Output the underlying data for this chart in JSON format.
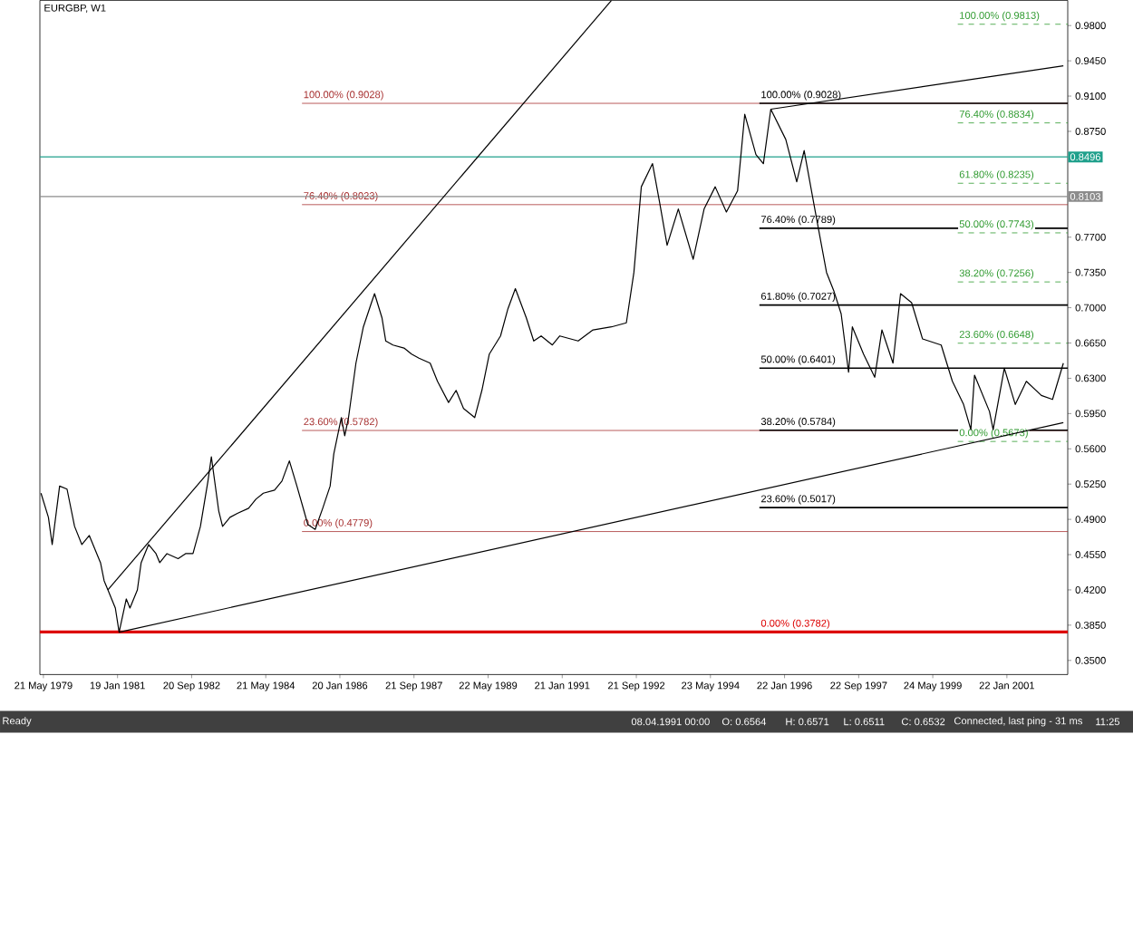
{
  "chart_data": {
    "type": "line",
    "title": "EURGBP, W1",
    "xlim": [
      "1979-04-22",
      "2002-06-06"
    ],
    "ylim": [
      0.336,
      1.005
    ],
    "xticks": [
      {
        "value": "1979-05-21",
        "label": "21 May 1979"
      },
      {
        "value": "1981-01-19",
        "label": "19 Jan 1981"
      },
      {
        "value": "1982-09-20",
        "label": "20 Sep 1982"
      },
      {
        "value": "1984-05-21",
        "label": "21 May 1984"
      },
      {
        "value": "1986-01-20",
        "label": "20 Jan 1986"
      },
      {
        "value": "1987-09-21",
        "label": "21 Sep 1987"
      },
      {
        "value": "1989-05-22",
        "label": "22 May 1989"
      },
      {
        "value": "1991-01-21",
        "label": "21 Jan 1991"
      },
      {
        "value": "1992-09-21",
        "label": "21 Sep 1992"
      },
      {
        "value": "1994-05-23",
        "label": "23 May 1994"
      },
      {
        "value": "1996-01-22",
        "label": "22 Jan 1996"
      },
      {
        "value": "1997-09-22",
        "label": "22 Sep 1997"
      },
      {
        "value": "1999-05-24",
        "label": "24 May 1999"
      },
      {
        "value": "2001-01-22",
        "label": "22 Jan 2001"
      }
    ],
    "yticks": [
      {
        "value": 0.98,
        "label": "0.9800"
      },
      {
        "value": 0.945,
        "label": "0.9450"
      },
      {
        "value": 0.91,
        "label": "0.9100"
      },
      {
        "value": 0.875,
        "label": "0.8750"
      },
      {
        "value": 0.77,
        "label": "0.7700"
      },
      {
        "value": 0.735,
        "label": "0.7350"
      },
      {
        "value": 0.7,
        "label": "0.7000"
      },
      {
        "value": 0.665,
        "label": "0.6650"
      },
      {
        "value": 0.63,
        "label": "0.6300"
      },
      {
        "value": 0.595,
        "label": "0.5950"
      },
      {
        "value": 0.56,
        "label": "0.5600"
      },
      {
        "value": 0.525,
        "label": "0.5250"
      },
      {
        "value": 0.49,
        "label": "0.4900"
      },
      {
        "value": 0.455,
        "label": "0.4550"
      },
      {
        "value": 0.42,
        "label": "0.4200"
      },
      {
        "value": 0.385,
        "label": "0.3850"
      },
      {
        "value": 0.35,
        "label": "0.3500"
      }
    ],
    "series": [
      {
        "color": "#000000",
        "x": [
          "1979-05",
          "1979-07",
          "1979-08",
          "1979-10",
          "1979-12",
          "1980-02",
          "1980-04",
          "1980-06",
          "1980-09",
          "1980-10",
          "1980-11",
          "1981-01",
          "1981-02",
          "1981-04",
          "1981-05",
          "1981-07",
          "1981-08",
          "1981-10",
          "1981-12",
          "1982-01",
          "1982-03",
          "1982-06",
          "1982-08",
          "1982-10",
          "1982-12",
          "1983-02",
          "1983-03",
          "1983-05",
          "1983-06",
          "1983-08",
          "1983-10",
          "1984-01",
          "1984-03",
          "1984-05",
          "1984-08",
          "1984-10",
          "1984-12",
          "1985-02",
          "1985-04",
          "1985-05",
          "1985-07",
          "1985-09",
          "1985-11",
          "1985-12",
          "1986-02",
          "1986-03",
          "1986-04",
          "1986-06",
          "1986-08",
          "1986-10",
          "1986-11",
          "1987-01",
          "1987-02",
          "1987-04",
          "1987-07",
          "1987-09",
          "1987-11",
          "1988-02",
          "1988-04",
          "1988-07",
          "1988-09",
          "1988-11",
          "1989-02",
          "1989-04",
          "1989-06",
          "1989-09",
          "1989-11",
          "1990-01",
          "1990-04",
          "1990-06",
          "1990-08",
          "1990-11",
          "1991-01",
          "1991-06",
          "1991-10",
          "1992-03",
          "1992-07",
          "1992-09",
          "1992-11",
          "1993-02",
          "1993-04",
          "1993-06",
          "1993-09",
          "1994-01",
          "1994-04",
          "1994-07",
          "1994-10",
          "1995-01",
          "1995-03",
          "1995-06",
          "1995-08",
          "1995-10",
          "1996-02",
          "1996-05",
          "1996-07",
          "1996-10",
          "1997-01",
          "1997-03",
          "1997-05",
          "1997-07",
          "1997-08",
          "1997-11",
          "1998-02",
          "1998-04",
          "1998-07",
          "1998-09",
          "1998-12",
          "1999-03",
          "1999-08",
          "1999-11",
          "2000-02",
          "2000-04",
          "2000-05",
          "2000-09",
          "2000-10",
          "2001-01",
          "2001-04",
          "2001-07",
          "2001-11",
          "2002-02",
          "2002-05"
        ],
        "values": [
          0.516,
          0.492,
          0.465,
          0.523,
          0.52,
          0.483,
          0.465,
          0.474,
          0.447,
          0.429,
          0.42,
          0.402,
          0.378,
          0.411,
          0.402,
          0.42,
          0.447,
          0.465,
          0.456,
          0.447,
          0.456,
          0.451,
          0.456,
          0.456,
          0.483,
          0.528,
          0.552,
          0.498,
          0.483,
          0.492,
          0.496,
          0.501,
          0.51,
          0.516,
          0.519,
          0.528,
          0.548,
          0.523,
          0.498,
          0.485,
          0.48,
          0.501,
          0.523,
          0.555,
          0.591,
          0.573,
          0.591,
          0.645,
          0.681,
          0.703,
          0.714,
          0.69,
          0.667,
          0.663,
          0.66,
          0.654,
          0.65,
          0.645,
          0.627,
          0.606,
          0.618,
          0.6,
          0.591,
          0.618,
          0.654,
          0.672,
          0.699,
          0.719,
          0.69,
          0.667,
          0.672,
          0.663,
          0.672,
          0.667,
          0.678,
          0.681,
          0.685,
          0.735,
          0.82,
          0.843,
          0.804,
          0.762,
          0.798,
          0.748,
          0.798,
          0.82,
          0.795,
          0.816,
          0.892,
          0.852,
          0.843,
          0.897,
          0.867,
          0.825,
          0.856,
          0.795,
          0.735,
          0.717,
          0.694,
          0.636,
          0.681,
          0.654,
          0.631,
          0.678,
          0.645,
          0.714,
          0.705,
          0.669,
          0.663,
          0.627,
          0.604,
          0.579,
          0.633,
          0.597,
          0.579,
          0.64,
          0.604,
          0.627,
          0.613,
          0.609,
          0.645
        ]
      },
      {
        "color": "#000000",
        "x": [
          "1980-11",
          "1992-03"
        ],
        "values": [
          0.42,
          1.005
        ]
      },
      {
        "color": "#000000",
        "x": [
          "1981-02",
          "2002-05"
        ],
        "values": [
          0.378,
          0.586
        ]
      },
      {
        "color": "#000000",
        "x": [
          "1995-10",
          "2002-05"
        ],
        "values": [
          0.897,
          0.94
        ]
      }
    ],
    "ref_lines": [
      {
        "axis": "y",
        "value": 0.9028,
        "label": "100.00% (0.9028)",
        "color": "#a83232"
      },
      {
        "axis": "y",
        "value": 0.8023,
        "label": "76.40% (0.8023)",
        "color": "#a83232"
      },
      {
        "axis": "y",
        "value": 0.5782,
        "label": "23.60% (0.5782)",
        "color": "#a83232"
      },
      {
        "axis": "y",
        "value": 0.4779,
        "label": "0.00% (0.4779)",
        "color": "#a83232"
      },
      {
        "axis": "y",
        "value": 0.9028,
        "label": "100.00% (0.9028)",
        "color": "#000000"
      },
      {
        "axis": "y",
        "value": 0.7789,
        "label": "76.40% (0.7789)",
        "color": "#000000"
      },
      {
        "axis": "y",
        "value": 0.7027,
        "label": "61.80% (0.7027)",
        "color": "#000000"
      },
      {
        "axis": "y",
        "value": 0.6401,
        "label": "50.00% (0.6401)",
        "color": "#000000"
      },
      {
        "axis": "y",
        "value": 0.5784,
        "label": "38.20% (0.5784)",
        "color": "#000000"
      },
      {
        "axis": "y",
        "value": 0.5017,
        "label": "23.60% (0.5017)",
        "color": "#000000"
      },
      {
        "axis": "y",
        "value": 0.3782,
        "label": "0.00% (0.3782)",
        "color": "#dd0000"
      },
      {
        "axis": "y",
        "value": 0.9813,
        "label": "100.00% (0.9813)",
        "color": "#2f9a2f",
        "line_style": "dashed"
      },
      {
        "axis": "y",
        "value": 0.8834,
        "label": "76.40% (0.8834)",
        "color": "#2f9a2f",
        "line_style": "dashed"
      },
      {
        "axis": "y",
        "value": 0.8235,
        "label": "61.80% (0.8235)",
        "color": "#2f9a2f",
        "line_style": "dashed"
      },
      {
        "axis": "y",
        "value": 0.7743,
        "label": "50.00% (0.7743)",
        "color": "#2f9a2f",
        "line_style": "dashed"
      },
      {
        "axis": "y",
        "value": 0.7256,
        "label": "38.20% (0.7256)",
        "color": "#2f9a2f",
        "line_style": "dashed"
      },
      {
        "axis": "y",
        "value": 0.6648,
        "label": "23.60% (0.6648)",
        "color": "#2f9a2f",
        "line_style": "dashed"
      },
      {
        "axis": "y",
        "value": 0.5673,
        "label": "0.00% (0.5673)",
        "color": "#2f9a2f",
        "line_style": "dashed"
      },
      {
        "axis": "y",
        "value": 0.8496,
        "label": "0.8496",
        "color": "#20a08c"
      },
      {
        "axis": "y",
        "value": 0.8103,
        "label": "0.8103",
        "color": "#8c8c8c"
      }
    ],
    "annotations": [
      "Ready",
      "08.04.1991 00:00",
      "O: 0.6564",
      "H: 0.6571",
      "L: 0.6511",
      "C: 0.6532",
      "Connected, last ping - 31 ms",
      "11:25"
    ],
    "grid": false,
    "marker": "none",
    "line_style": "solid"
  }
}
